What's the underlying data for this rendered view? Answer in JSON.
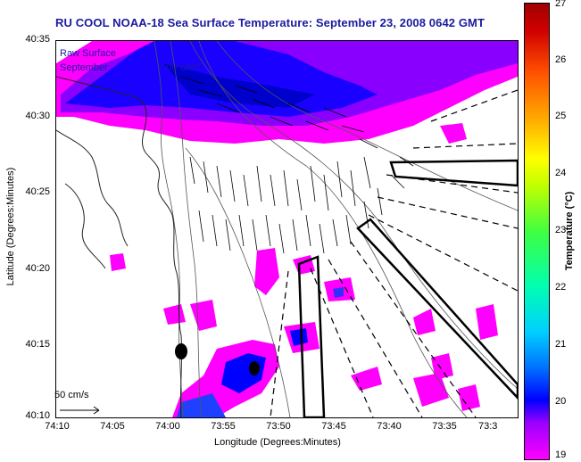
{
  "title": "RU COOL  NOAA-18  Sea Surface Temperature:  September 23, 2008 0642 GMT",
  "overlay": {
    "line1": "Raw Surface",
    "line2_start": "September",
    "line2_end": "7:00 GMT"
  },
  "axes": {
    "xlabel": "Longitude (Degrees:Minutes)",
    "ylabel": "Latitude (Degrees:Minutes)",
    "yticks": [
      "40:35",
      "40:30",
      "40:25",
      "40:20",
      "40:15",
      "40:10"
    ],
    "xticks": [
      "74:10",
      "74:05",
      "74:00",
      "73:55",
      "73:50",
      "73:45",
      "73:40",
      "73:35",
      "73:3"
    ]
  },
  "scale": {
    "label": "50 cm/s"
  },
  "colorbar": {
    "label": "Temperature (°C)",
    "ticks": [
      "27",
      "26",
      "25",
      "24",
      "23",
      "22",
      "21",
      "20",
      "19"
    ],
    "min": 19,
    "max": 27
  },
  "colors": {
    "title": "#1a1aa0",
    "warm_water": "#ff00ff",
    "mid_water": "#9a00ff",
    "cool_water": "#0000ff"
  }
}
